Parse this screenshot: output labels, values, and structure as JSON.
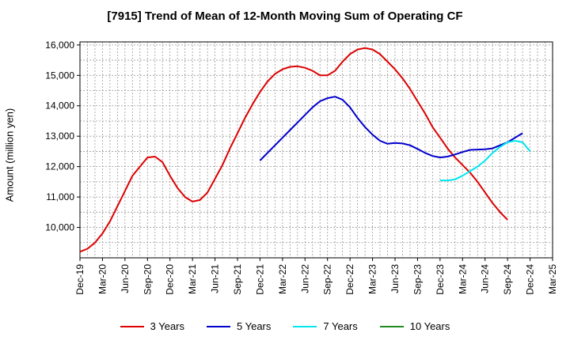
{
  "chart_data": {
    "type": "line",
    "title": "[7915]  Trend of Mean of 12-Month Moving Sum of Operating CF",
    "xlabel": "",
    "ylabel": "Amount (million yen)",
    "ylim": [
      9000,
      16100
    ],
    "yticks": [
      10000,
      11000,
      12000,
      13000,
      14000,
      15000,
      16000
    ],
    "ytick_labels": [
      "10,000",
      "11,000",
      "12,000",
      "13,000",
      "14,000",
      "15,000",
      "16,000"
    ],
    "x_tick_labels": [
      "Dec-19",
      "Mar-20",
      "Jun-20",
      "Sep-20",
      "Dec-20",
      "Mar-21",
      "Jun-21",
      "Sep-21",
      "Dec-21",
      "Mar-22",
      "Jun-22",
      "Sep-22",
      "Dec-22",
      "Mar-23",
      "Jun-23",
      "Sep-23",
      "Dec-23",
      "Mar-24",
      "Jun-24",
      "Sep-24",
      "Dec-24",
      "Mar-25"
    ],
    "x_start": "Dec-19",
    "grid": true,
    "legend_position": "bottom",
    "series": [
      {
        "name": "3 Years",
        "color": "#dd0000",
        "start_index": 0,
        "values": [
          9200,
          9300,
          9500,
          9800,
          10200,
          10700,
          11200,
          11700,
          12000,
          12300,
          12330,
          12150,
          11700,
          11300,
          11000,
          10850,
          10900,
          11150,
          11600,
          12050,
          12600,
          13100,
          13600,
          14050,
          14450,
          14800,
          15050,
          15200,
          15280,
          15300,
          15250,
          15150,
          15000,
          15000,
          15150,
          15450,
          15700,
          15850,
          15900,
          15850,
          15700,
          15450,
          15200,
          14900,
          14550,
          14150,
          13750,
          13300,
          12950,
          12600,
          12300,
          12050,
          11800,
          11500,
          11150,
          10800,
          10500,
          10250
        ]
      },
      {
        "name": "5 Years",
        "color": "#0000cc",
        "start_index": 24,
        "values": [
          12200,
          12450,
          12700,
          12950,
          13200,
          13450,
          13700,
          13950,
          14150,
          14250,
          14300,
          14200,
          13950,
          13600,
          13300,
          13050,
          12850,
          12750,
          12780,
          12760,
          12700,
          12580,
          12450,
          12350,
          12300,
          12330,
          12400,
          12480,
          12550,
          12560,
          12570,
          12600,
          12700,
          12800,
          12950,
          13100
        ]
      },
      {
        "name": "7 Years",
        "color": "#00e5ee",
        "start_index": 48,
        "values": [
          11550,
          11540,
          11580,
          11700,
          11850,
          12000,
          12200,
          12450,
          12650,
          12800,
          12850,
          12800,
          12500
        ]
      },
      {
        "name": "10 Years",
        "color": "#228b22",
        "start_index": 0,
        "values": []
      }
    ]
  }
}
